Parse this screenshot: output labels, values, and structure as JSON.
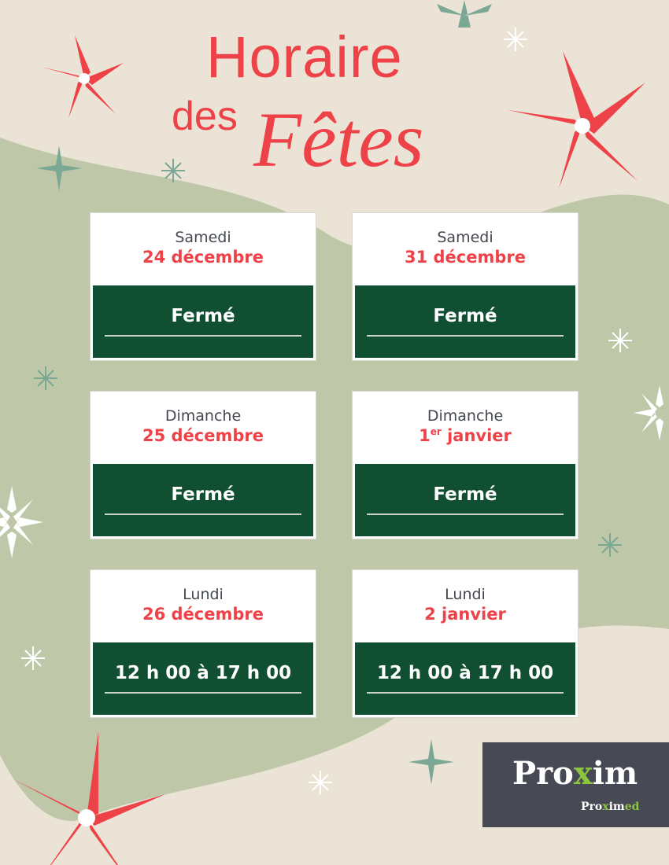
{
  "title": {
    "line1": "Horaire",
    "line2": "des",
    "line3": "Fêtes"
  },
  "colors": {
    "red": "#ee4249",
    "green": "#114f33",
    "background": "#ebe4d6",
    "sage": "#bec8a8"
  },
  "cards": [
    {
      "day": "Samedi",
      "date": "24 décembre",
      "status": "Fermé"
    },
    {
      "day": "Samedi",
      "date": "31 décembre",
      "status": "Fermé"
    },
    {
      "day": "Dimanche",
      "date": "25 décembre",
      "status": "Fermé"
    },
    {
      "day": "Dimanche",
      "date_num": "1",
      "date_sup": "er",
      "date_rest": " janvier",
      "status": "Fermé"
    },
    {
      "day": "Lundi",
      "date": "26 décembre",
      "status": "12 h 00 à 17 h 00"
    },
    {
      "day": "Lundi",
      "date": "2 janvier",
      "status": "12 h 00 à 17 h 00"
    }
  ],
  "logo": {
    "pre": "Pro",
    "x": "x",
    "post": "im",
    "sub_pre": "Pro",
    "sub_x": "x",
    "sub_mid": "im",
    "sub_ed": "ed"
  }
}
